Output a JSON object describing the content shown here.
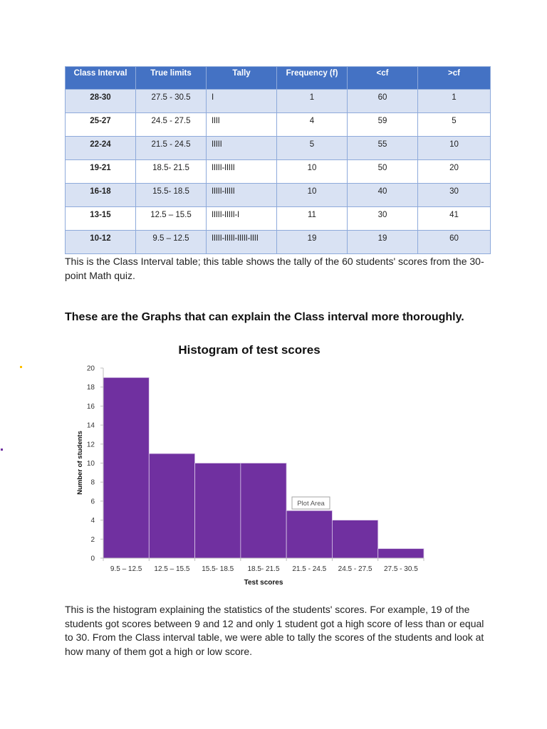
{
  "table": {
    "headers": [
      "Class Interval",
      "True limits",
      "Tally",
      "Frequency (f)",
      "<cf",
      ">cf"
    ],
    "rows": [
      [
        "28-30",
        "27.5 - 30.5",
        "I",
        "1",
        "60",
        "1"
      ],
      [
        "25-27",
        "24.5 - 27.5",
        "IIII",
        "4",
        "59",
        "5"
      ],
      [
        "22-24",
        "21.5 - 24.5",
        "IIIII",
        "5",
        "55",
        "10"
      ],
      [
        "19-21",
        "18.5- 21.5",
        "IIIII-IIIII",
        "10",
        "50",
        "20"
      ],
      [
        "16-18",
        "15.5- 18.5",
        "IIIII-IIIII",
        "10",
        "40",
        "30"
      ],
      [
        "13-15",
        "12.5 – 15.5",
        "IIIII-IIIII-I",
        "11",
        "30",
        "41"
      ],
      [
        "10-12",
        "9.5 – 12.5",
        "IIIII-IIIII-IIIII-IIII",
        "19",
        "19",
        "60"
      ]
    ]
  },
  "caption1": "This is the Class Interval table; this table shows the tally of the 60 students' scores from the 30-point Math quiz.",
  "heading2": "These are the Graphs that can explain the Class interval more thoroughly.",
  "caption2": "This is the histogram explaining the statistics of the students' scores. For example, 19 of the students got scores between 9 and 12 and only 1 student got a high score of less than or equal to 30. From the Class interval table, we were able to tally the scores of the students and look at how many of them got a high or low score.",
  "colors": {
    "table_header": "#4472c4",
    "table_band": "#d9e2f3",
    "bar": "#7030a0",
    "dot_orange": "#ffc000",
    "dot_purple": "#7030a0"
  },
  "chart_data": {
    "type": "bar",
    "title": "Histogram of test scores",
    "xlabel": "Test scores",
    "ylabel": "Number of students",
    "categories": [
      "9.5 – 12.5",
      "12.5 – 15.5",
      "15.5- 18.5",
      "18.5- 21.5",
      "21.5 - 24.5",
      "24.5 - 27.5",
      "27.5 - 30.5"
    ],
    "values": [
      19,
      11,
      10,
      10,
      5,
      4,
      1
    ],
    "ylim": [
      0,
      20
    ],
    "yticks": [
      "0",
      "2",
      "4",
      "6",
      "8",
      "10",
      "12",
      "14",
      "16",
      "18",
      "20"
    ],
    "annotation": "Plot Area",
    "grid": false
  }
}
